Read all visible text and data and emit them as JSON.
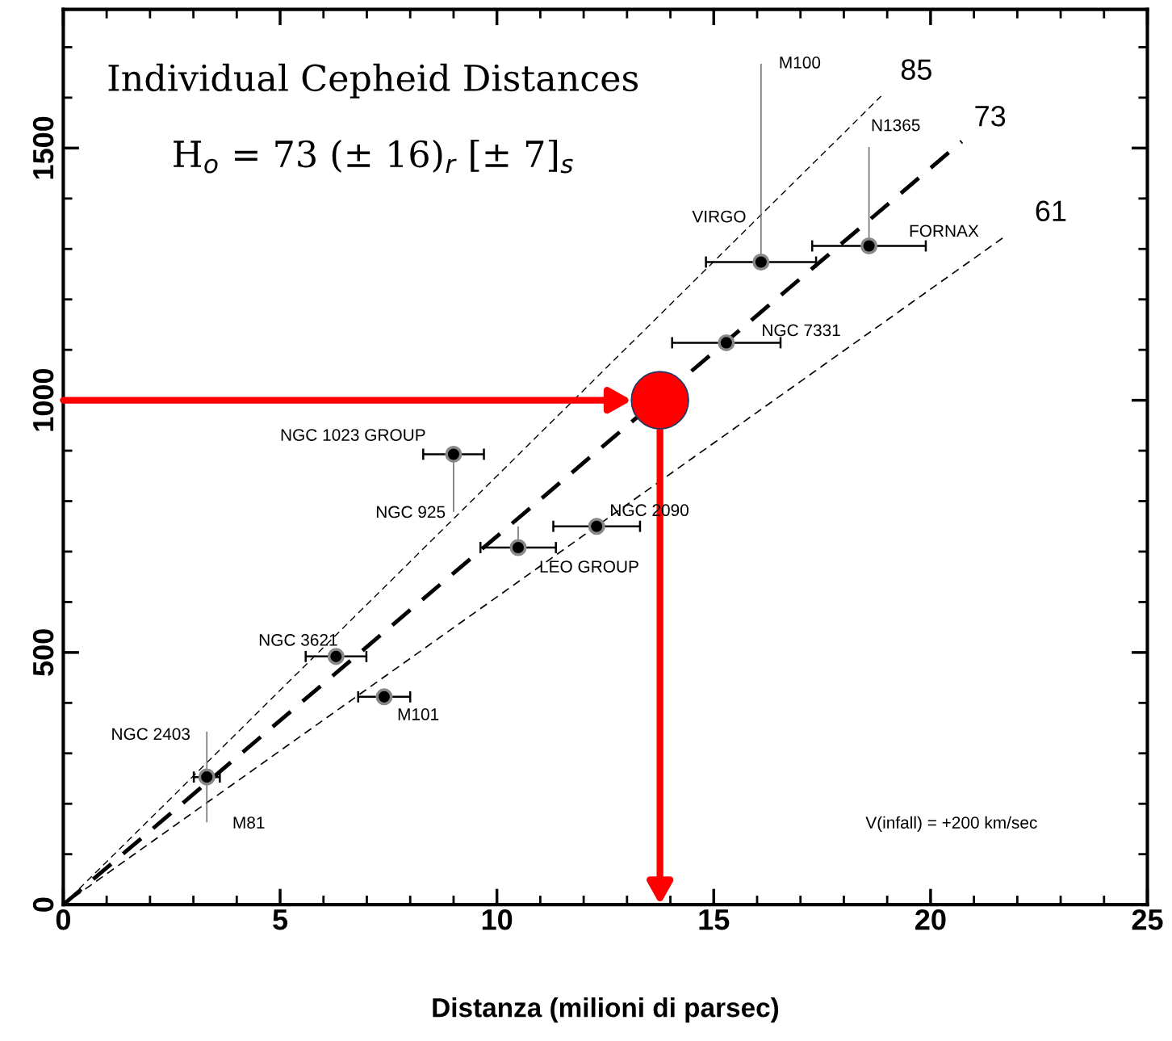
{
  "chart_data": {
    "type": "scatter",
    "title": "Individual Cepheid Distances",
    "subtitle": "H$_{o}$ = 73 (± 16)$_{r}$ [± 7]$_{s}$",
    "xlabel": "Distanza (milioni di parsec)",
    "xlim": [
      0,
      25
    ],
    "ylim": [
      0,
      1775
    ],
    "xticks": [
      0,
      {
        "value": 1,
        "label": null
      },
      {
        "value": 2,
        "label": null
      },
      {
        "value": 3,
        "label": null
      },
      {
        "value": 4,
        "label": null
      },
      5,
      {
        "value": 6,
        "label": null
      },
      {
        "value": 7,
        "label": null
      },
      {
        "value": 8,
        "label": null
      },
      {
        "value": 9,
        "label": null
      },
      10,
      {
        "value": 11,
        "label": null
      },
      {
        "value": 12,
        "label": null
      },
      {
        "value": 13,
        "label": null
      },
      {
        "value": 14,
        "label": null
      },
      15,
      {
        "value": 16,
        "label": null
      },
      {
        "value": 17,
        "label": null
      },
      {
        "value": 18,
        "label": null
      },
      {
        "value": 19,
        "label": null
      },
      20,
      {
        "value": 21,
        "label": null
      },
      {
        "value": 22,
        "label": null
      },
      {
        "value": 23,
        "label": null
      },
      {
        "value": 24,
        "label": null
      },
      25
    ],
    "yticks": [
      0,
      {
        "value": 100,
        "label": null
      },
      {
        "value": 200,
        "label": null
      },
      {
        "value": 300,
        "label": null
      },
      {
        "value": 400,
        "label": null
      },
      500,
      {
        "value": 600,
        "label": null
      },
      {
        "value": 700,
        "label": null
      },
      {
        "value": 800,
        "label": null
      },
      {
        "value": 900,
        "label": null
      },
      1000,
      {
        "value": 1100,
        "label": null
      },
      {
        "value": 1200,
        "label": null
      },
      {
        "value": 1300,
        "label": null
      },
      {
        "value": 1400,
        "label": null
      },
      1500,
      {
        "value": 1600,
        "label": null
      },
      {
        "value": 1700,
        "label": null
      }
    ],
    "grid": false,
    "series": [
      {
        "type": "scatter",
        "color": "#000000",
        "marker": "circle",
        "x": [
          3.31,
          6.29,
          7.4,
          9.0,
          10.49,
          12.3,
          15.29,
          16.09,
          18.58
        ],
        "values": [
          253,
          492,
          412,
          893,
          708,
          750,
          1114,
          1274,
          1306
        ],
        "errors": [
          90,
          null,
          null,
          [
            779,
            893
          ],
          [
            708,
            750
          ],
          null,
          null,
          [
            1274,
            1667
          ],
          [
            1306,
            1502
          ]
        ],
        "xerrors": [
          0.3,
          0.7,
          0.6,
          0.7,
          0.87,
          1.0,
          1.25,
          1.27,
          1.31
        ]
      },
      {
        "type": "line",
        "color": "#000000",
        "line_style": "dashed",
        "marker": "none",
        "x": [
          0,
          18.86
        ],
        "values": [
          0,
          1603
        ]
      },
      {
        "type": "line",
        "color": "#000000",
        "line_style": "dashed",
        "marker": "none",
        "x": [
          0,
          20.72
        ],
        "values": [
          0,
          1513
        ]
      },
      {
        "type": "line",
        "color": "#000000",
        "line_style": "dashed",
        "marker": "none",
        "x": [
          0,
          21.7
        ],
        "values": [
          0,
          1324
        ]
      },
      {
        "type": "scatter",
        "color": "#ff0000",
        "marker": "circle",
        "x": [
          13.76
        ],
        "values": [
          1000
        ]
      }
    ],
    "annotations": [
      "M100",
      "N1365",
      "VIRGO",
      "FORNAX",
      "NGC 7331",
      "NGC 1023 GROUP",
      "NGC 925",
      "NGC 2090",
      "LEO GROUP",
      "NGC 3621",
      "M101",
      "NGC 2403",
      "M81",
      "V(infall) = +200 km/sec",
      "85",
      "73",
      "61"
    ]
  }
}
